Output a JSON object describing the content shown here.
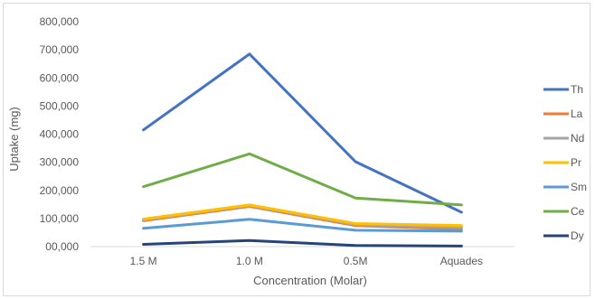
{
  "chart_data": {
    "type": "line",
    "title": "",
    "xlabel": "Concentration (Molar)",
    "ylabel": "Uptake (mg)",
    "categories": [
      "1.5 M",
      "1.0 M",
      "0.5M",
      "Aquades"
    ],
    "ylim": [
      0,
      800000
    ],
    "y_ticks": [
      0,
      100000,
      200000,
      300000,
      400000,
      500000,
      600000,
      700000,
      800000
    ],
    "y_tick_labels": [
      "00,000",
      "100,000",
      "200,000",
      "300,000",
      "400,000",
      "500,000",
      "600,000",
      "700,000",
      "800,000"
    ],
    "grid": "none",
    "legend_position": "right",
    "series": [
      {
        "name": "Th",
        "color": "#4472c4",
        "values": [
          415000,
          685000,
          302000,
          122000
        ]
      },
      {
        "name": "La",
        "color": "#ed7d31",
        "values": [
          92000,
          143000,
          75000,
          62000
        ]
      },
      {
        "name": "Nd",
        "color": "#a5a5a5",
        "values": [
          95000,
          146000,
          78000,
          68000
        ]
      },
      {
        "name": "Pr",
        "color": "#ffc000",
        "values": [
          98000,
          148000,
          82000,
          75000
        ]
      },
      {
        "name": "Sm",
        "color": "#5b9bd5",
        "values": [
          65000,
          97000,
          58000,
          55000
        ]
      },
      {
        "name": "Ce",
        "color": "#70ad47",
        "values": [
          213000,
          330000,
          173000,
          148000
        ]
      },
      {
        "name": "Dy",
        "color": "#264478",
        "values": [
          8000,
          22000,
          4000,
          2000
        ]
      }
    ]
  }
}
